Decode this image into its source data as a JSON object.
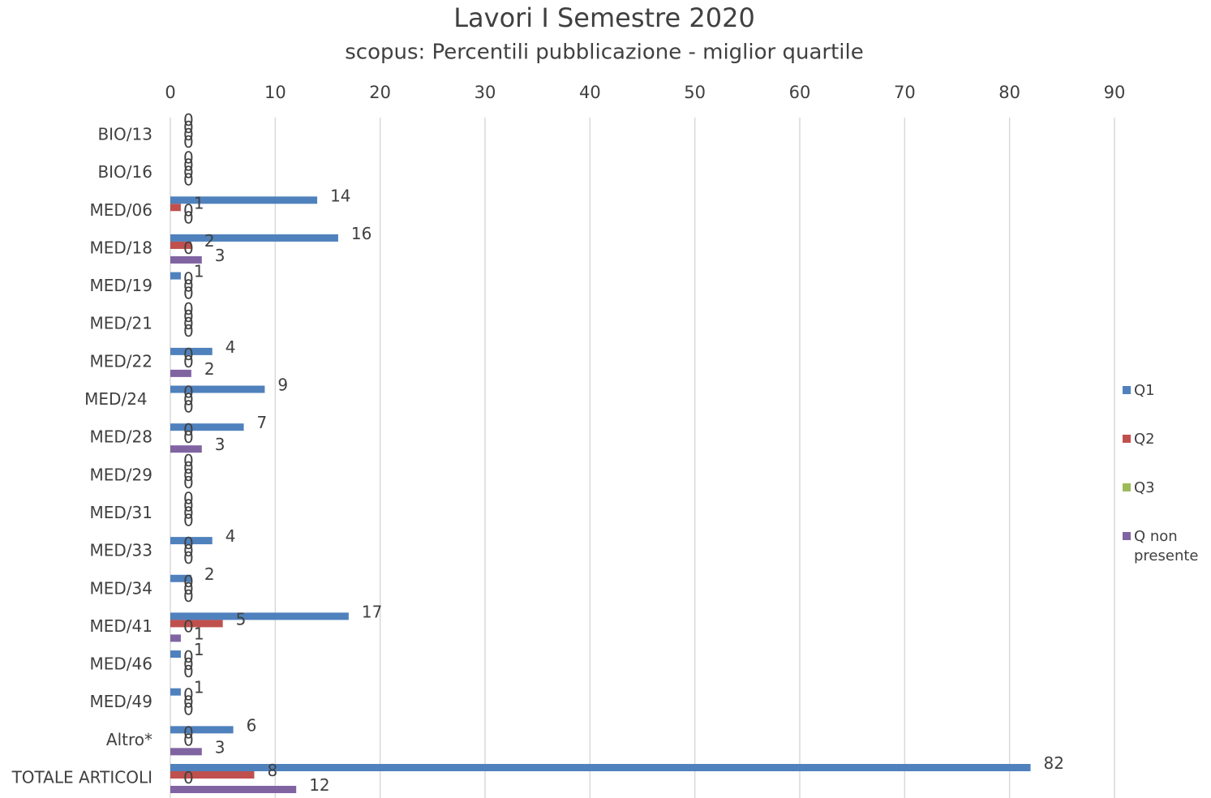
{
  "chart_data": {
    "type": "bar",
    "orientation": "horizontal",
    "title": "Lavori I Semestre 2020",
    "subtitle": "scopus: Percentili pubblicazione - miglior quartile",
    "categories": [
      "BIO/13",
      "BIO/16",
      "MED/06",
      "MED/18",
      "MED/19",
      "MED/21",
      "MED/22",
      "MED/24 ",
      "MED/28",
      "MED/29",
      "MED/31",
      "MED/33",
      "MED/34",
      "MED/41",
      "MED/46",
      "MED/49",
      "Altro*",
      "TOTALE ARTICOLI"
    ],
    "series": [
      {
        "name": "Q1",
        "color": "#4f81bd",
        "values": [
          0,
          0,
          14,
          16,
          1,
          0,
          4,
          9,
          7,
          0,
          0,
          4,
          2,
          17,
          1,
          1,
          6,
          82
        ]
      },
      {
        "name": "Q2",
        "color": "#c0504d",
        "values": [
          0,
          0,
          1,
          2,
          0,
          0,
          0,
          0,
          0,
          0,
          0,
          0,
          0,
          5,
          0,
          0,
          0,
          8
        ]
      },
      {
        "name": "Q3",
        "color": "#9bbb59",
        "values": [
          0,
          0,
          0,
          0,
          0,
          0,
          0,
          0,
          0,
          0,
          0,
          0,
          0,
          0,
          0,
          0,
          0,
          0
        ]
      },
      {
        "name": "Q non presente",
        "color": "#8064a2",
        "values": [
          0,
          0,
          0,
          3,
          0,
          0,
          2,
          0,
          3,
          0,
          0,
          0,
          0,
          1,
          0,
          0,
          3,
          12
        ]
      }
    ],
    "xlim": [
      0,
      90
    ],
    "xticks": [
      0,
      10,
      20,
      30,
      40,
      50,
      60,
      70,
      80,
      90
    ],
    "grid": true,
    "legend": "right",
    "data_labels": true
  }
}
